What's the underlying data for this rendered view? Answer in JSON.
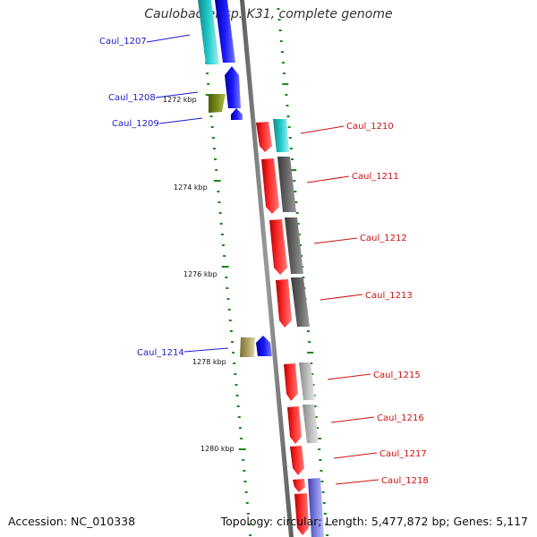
{
  "title": "Caulobacter sp. K31, complete genome",
  "footer": {
    "accession": "Accession: NC_010338",
    "summary": "Topology: circular; Length: 5,477,872 bp; Genes: 5,117"
  },
  "ticks": [
    "1272 kbp",
    "1274 kbp",
    "1276 kbp",
    "1278 kbp",
    "1280 kbp"
  ],
  "genes_left": [
    "Caul_1207",
    "Caul_1208",
    "Caul_1209",
    "Caul_1214"
  ],
  "genes_right": [
    "Caul_1210",
    "Caul_1211",
    "Caul_1212",
    "Caul_1213",
    "Caul_1215",
    "Caul_1216",
    "Caul_1217",
    "Caul_1218"
  ],
  "colors": {
    "left_label": "#1a1acc",
    "right_label": "#cc1111",
    "backbone": "#8a8a8a",
    "tick": "#1a8a1a",
    "red": "#ff1a1a",
    "blue": "#1a1aff",
    "cyan": "#22cccc",
    "olive": "#7a8a1a",
    "khaki": "#aaa060",
    "dark_gray": "#666666",
    "light_gray": "#bbbbbb",
    "lavender": "#8080e0"
  }
}
